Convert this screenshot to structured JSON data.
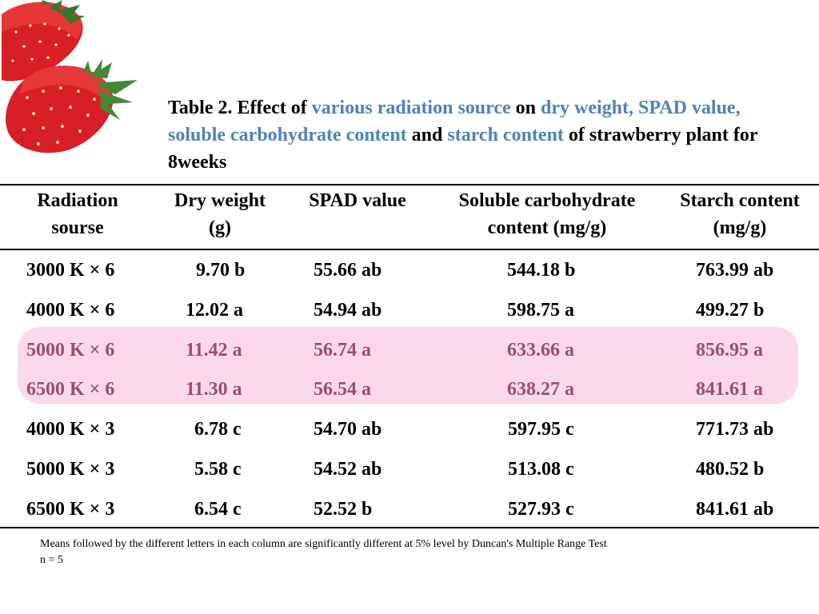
{
  "title": {
    "p1": "Table 2. Effect of ",
    "h1": "various radiation source",
    "p2": " on ",
    "h2": "dry weight, SPAD value, soluble carbohydrate content",
    "p3": " and ",
    "h3": "starch content",
    "p4": " of strawberry plant for 8weeks"
  },
  "colors": {
    "highlight_text": "#4f81bd",
    "row_highlight_bg": "#fbd9ea",
    "row_highlight_text": "#9b4f6d"
  },
  "table": {
    "headers": [
      {
        "l1": "Radiation",
        "l2": "sourse"
      },
      {
        "l1": "Dry weight",
        "l2": "(g)"
      },
      {
        "l1": "SPAD value",
        "l2": ""
      },
      {
        "l1": "Soluble carbohydrate",
        "l2": "content (mg/g)"
      },
      {
        "l1": "Starch content",
        "l2": "(mg/g)"
      }
    ],
    "rows": [
      [
        "3000 K × 6",
        "9.70 b",
        "55.66 ab",
        "544.18 b",
        "763.99 ab"
      ],
      [
        "4000 K × 6",
        "12.02 a",
        "54.94 ab",
        "598.75 a",
        "499.27 b"
      ],
      [
        "5000 K × 6",
        "11.42 a",
        "56.74 a",
        "633.66 a",
        "856.95 a"
      ],
      [
        "6500 K × 6",
        "11.30 a",
        "56.54 a",
        "638.27 a",
        "841.61 a"
      ],
      [
        "4000 K × 3",
        "6.78 c",
        "54.70 ab",
        "597.95 c",
        "771.73 ab"
      ],
      [
        "5000 K × 3",
        "5.58 c",
        "54.52 ab",
        "513.08 c",
        "480.52 b"
      ],
      [
        "6500 K × 3",
        "6.54 c",
        "52.52 b",
        "527.93 c",
        "841.61 ab"
      ]
    ],
    "highlighted_rows": [
      2,
      3
    ]
  },
  "footnotes": {
    "line1": "Means followed by the different letters in each column are significantly different  at 5% level by Duncan's Multiple Range Test",
    "line2": "n = 5"
  },
  "icons": [
    "strawberry-icon"
  ]
}
